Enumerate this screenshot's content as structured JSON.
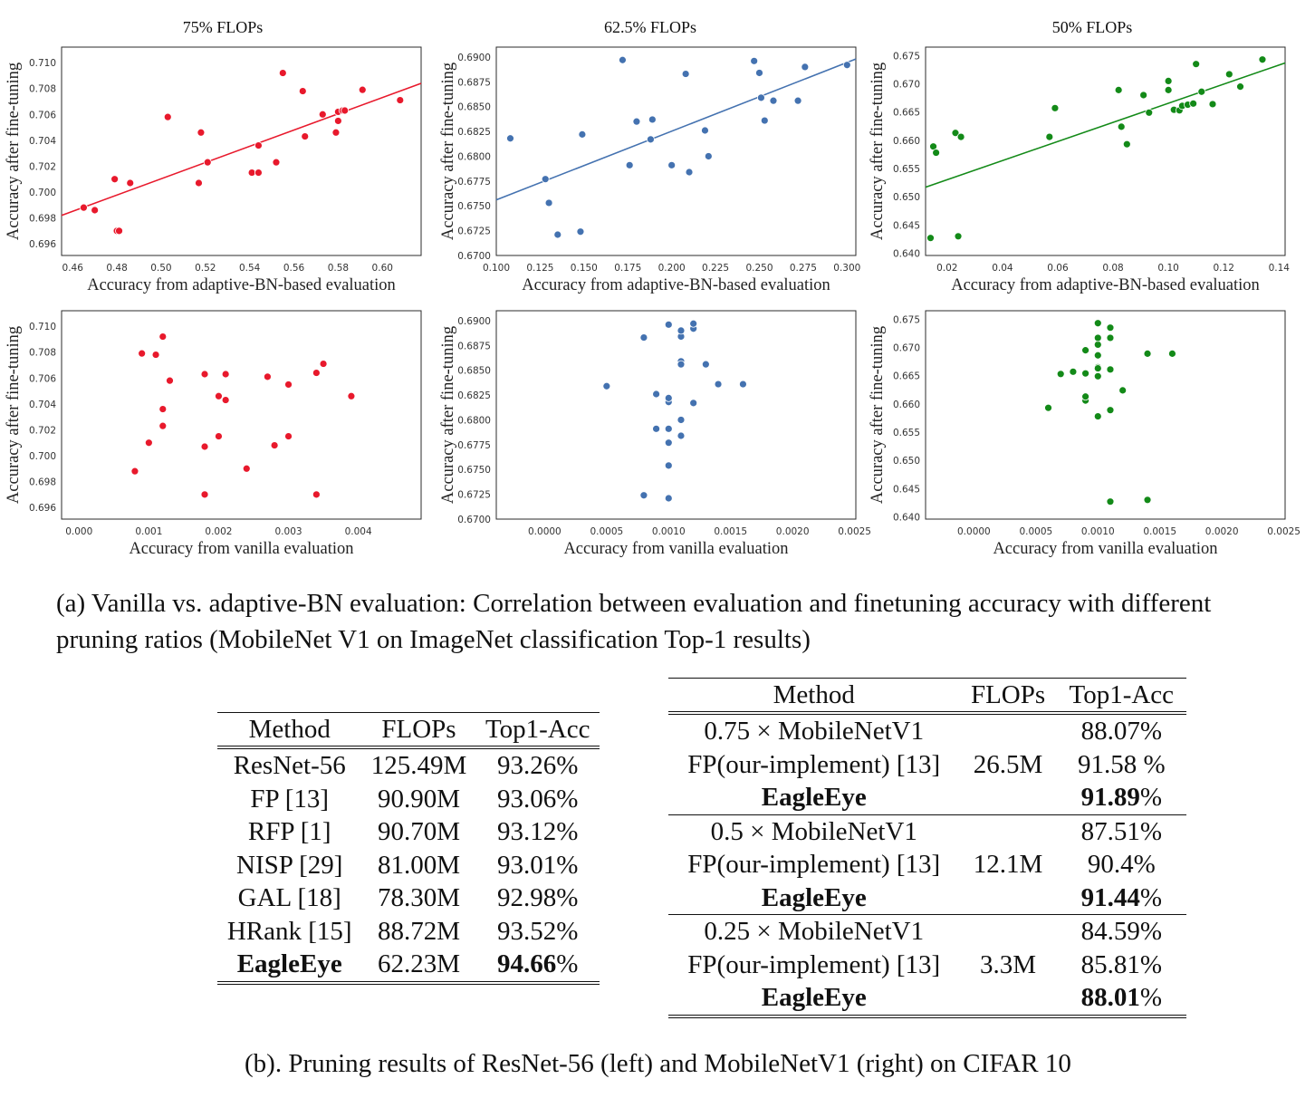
{
  "panel_titles": [
    "75% FLOPs",
    "62.5% FLOPs",
    "50% FLOPs"
  ],
  "chart_data": [
    {
      "type": "scatter",
      "title": "75% FLOPs",
      "color": "#e8192c",
      "xlabel": "Accuracy from adaptive-BN-based evaluation",
      "ylabel": "Accuracy after fine-tuning",
      "xlim": [
        0.455,
        0.6175
      ],
      "ylim": [
        0.6951,
        0.7112
      ],
      "xticks": [
        0.46,
        0.48,
        0.5,
        0.52,
        0.54,
        0.56,
        0.58,
        0.6
      ],
      "xticklabels": [
        "0.46",
        "0.48",
        "0.50",
        "0.52",
        "0.54",
        "0.56",
        "0.58",
        "0.60"
      ],
      "yticks": [
        0.696,
        0.698,
        0.7,
        0.702,
        0.704,
        0.706,
        0.708,
        0.71
      ],
      "yticklabels": [
        "0.696",
        "0.698",
        "0.700",
        "0.702",
        "0.704",
        "0.706",
        "0.708",
        "0.710"
      ],
      "fit": [
        [
          0.455,
          0.6982
        ],
        [
          0.6175,
          0.7084
        ]
      ],
      "x": [
        0.465,
        0.47,
        0.479,
        0.48,
        0.481,
        0.486,
        0.503,
        0.517,
        0.518,
        0.521,
        0.541,
        0.544,
        0.544,
        0.544,
        0.552,
        0.555,
        0.564,
        0.565,
        0.573,
        0.579,
        0.58,
        0.58,
        0.582,
        0.583,
        0.591,
        0.608
      ],
      "y": [
        0.6988,
        0.6986,
        0.701,
        0.697,
        0.697,
        0.7007,
        0.7058,
        0.7007,
        0.7046,
        0.7023,
        0.7015,
        0.7015,
        0.7015,
        0.7036,
        0.7023,
        0.7092,
        0.7078,
        0.7043,
        0.706,
        0.7046,
        0.7062,
        0.7055,
        0.7063,
        0.7063,
        0.7079,
        0.7071
      ]
    },
    {
      "type": "scatter",
      "title": "62.5% FLOPs",
      "color": "#4472b0",
      "xlabel": "Accuracy from adaptive-BN-based evaluation",
      "ylabel": "Accuracy after fine-tuning",
      "xlim": [
        0.1,
        0.305
      ],
      "ylim": [
        0.67,
        0.691
      ],
      "xticks": [
        0.1,
        0.125,
        0.15,
        0.175,
        0.2,
        0.225,
        0.25,
        0.275,
        0.3
      ],
      "xticklabels": [
        "0.100",
        "0.125",
        "0.150",
        "0.175",
        "0.200",
        "0.225",
        "0.250",
        "0.275",
        "0.300"
      ],
      "yticks": [
        0.67,
        0.6725,
        0.675,
        0.6775,
        0.68,
        0.6825,
        0.685,
        0.6875,
        0.69
      ],
      "yticklabels": [
        "0.6700",
        "0.6725",
        "0.6750",
        "0.6775",
        "0.6800",
        "0.6825",
        "0.6850",
        "0.6875",
        "0.6900"
      ],
      "fit": [
        [
          0.1,
          0.6756
        ],
        [
          0.305,
          0.6898
        ]
      ],
      "x": [
        0.108,
        0.128,
        0.13,
        0.135,
        0.148,
        0.149,
        0.172,
        0.176,
        0.18,
        0.188,
        0.189,
        0.2,
        0.2,
        0.208,
        0.21,
        0.219,
        0.221,
        0.247,
        0.25,
        0.251,
        0.253,
        0.258,
        0.272,
        0.276,
        0.3
      ],
      "y": [
        0.6818,
        0.6777,
        0.6753,
        0.6721,
        0.6724,
        0.6822,
        0.6897,
        0.6791,
        0.6835,
        0.6817,
        0.6837,
        0.6791,
        0.6791,
        0.6883,
        0.6784,
        0.6826,
        0.68,
        0.6896,
        0.6884,
        0.6859,
        0.6836,
        0.6856,
        0.6856,
        0.689,
        0.6892
      ]
    },
    {
      "type": "scatter",
      "title": "50% FLOPs",
      "color": "#138a18",
      "xlabel": "Accuracy from adaptive-BN-based evaluation",
      "ylabel": "Accuracy after fine-tuning",
      "xlim": [
        0.0122,
        0.1422
      ],
      "ylim": [
        0.6396,
        0.6765
      ],
      "xticks": [
        0.02,
        0.04,
        0.06,
        0.08,
        0.1,
        0.12,
        0.14
      ],
      "xticklabels": [
        "0.02",
        "0.04",
        "0.06",
        "0.08",
        "0.10",
        "0.12",
        "0.14"
      ],
      "yticks": [
        0.64,
        0.645,
        0.65,
        0.655,
        0.66,
        0.665,
        0.67,
        0.675
      ],
      "yticklabels": [
        "0.640",
        "0.645",
        "0.650",
        "0.655",
        "0.660",
        "0.665",
        "0.670",
        "0.675"
      ],
      "fit": [
        [
          0.0122,
          0.6517
        ],
        [
          0.1422,
          0.6737
        ]
      ],
      "x": [
        0.014,
        0.015,
        0.016,
        0.023,
        0.024,
        0.025,
        0.057,
        0.059,
        0.082,
        0.083,
        0.085,
        0.091,
        0.093,
        0.1,
        0.1,
        0.102,
        0.104,
        0.105,
        0.107,
        0.109,
        0.11,
        0.112,
        0.116,
        0.122,
        0.126,
        0.134
      ],
      "y": [
        0.6427,
        0.6589,
        0.6578,
        0.6613,
        0.643,
        0.6606,
        0.6606,
        0.6657,
        0.6689,
        0.6624,
        0.6593,
        0.668,
        0.6649,
        0.6689,
        0.6705,
        0.6654,
        0.6653,
        0.6661,
        0.6663,
        0.6665,
        0.6735,
        0.6686,
        0.6664,
        0.6717,
        0.6695,
        0.6743
      ]
    },
    {
      "type": "scatter",
      "title": "",
      "color": "#e8192c",
      "xlabel": "Accuracy from vanilla evaluation",
      "ylabel": "Accuracy after fine-tuning",
      "xlim": [
        -0.00025,
        0.0049
      ],
      "ylim": [
        0.6951,
        0.7112
      ],
      "xticks": [
        0,
        0.001,
        0.002,
        0.003,
        0.004
      ],
      "xticklabels": [
        "0.000",
        "0.001",
        "0.002",
        "0.003",
        "0.004"
      ],
      "yticks": [
        0.696,
        0.698,
        0.7,
        0.702,
        0.704,
        0.706,
        0.708,
        0.71
      ],
      "yticklabels": [
        "0.696",
        "0.698",
        "0.700",
        "0.702",
        "0.704",
        "0.706",
        "0.708",
        "0.710"
      ],
      "x": [
        0.0008,
        0.0009,
        0.001,
        0.0011,
        0.0012,
        0.0012,
        0.0012,
        0.0013,
        0.0018,
        0.0018,
        0.0018,
        0.002,
        0.002,
        0.0021,
        0.0021,
        0.0024,
        0.0027,
        0.0028,
        0.003,
        0.003,
        0.0034,
        0.0034,
        0.0035,
        0.0039
      ],
      "y": [
        0.6988,
        0.7079,
        0.701,
        0.7078,
        0.7092,
        0.7036,
        0.7023,
        0.7058,
        0.7063,
        0.7007,
        0.697,
        0.7046,
        0.7015,
        0.7063,
        0.7043,
        0.699,
        0.7061,
        0.7008,
        0.7055,
        0.7015,
        0.7064,
        0.697,
        0.7071,
        0.7046
      ]
    },
    {
      "type": "scatter",
      "title": "",
      "color": "#4472b0",
      "xlabel": "Accuracy from vanilla evaluation",
      "ylabel": "Accuracy after fine-tuning",
      "xlim": [
        -0.00039,
        0.00251
      ],
      "ylim": [
        0.67,
        0.691
      ],
      "xticks": [
        0,
        0.0005,
        0.001,
        0.0015,
        0.002,
        0.0025
      ],
      "xticklabels": [
        "0.0000",
        "0.0005",
        "0.0010",
        "0.0015",
        "0.0020",
        "0.0025"
      ],
      "yticks": [
        0.67,
        0.6725,
        0.675,
        0.6775,
        0.68,
        0.6825,
        0.685,
        0.6875,
        0.69
      ],
      "yticklabels": [
        "0.6700",
        "0.6725",
        "0.6750",
        "0.6775",
        "0.6800",
        "0.6825",
        "0.6850",
        "0.6875",
        "0.6900"
      ],
      "x": [
        0.0005,
        0.0008,
        0.0008,
        0.0009,
        0.0009,
        0.001,
        0.001,
        0.001,
        0.001,
        0.001,
        0.001,
        0.001,
        0.0011,
        0.0011,
        0.0011,
        0.0011,
        0.0011,
        0.0011,
        0.0012,
        0.0012,
        0.0012,
        0.0013,
        0.0014,
        0.0016
      ],
      "y": [
        0.6834,
        0.6724,
        0.6883,
        0.6826,
        0.6791,
        0.6721,
        0.6754,
        0.6777,
        0.6791,
        0.6818,
        0.6822,
        0.6896,
        0.6784,
        0.68,
        0.6859,
        0.6856,
        0.6884,
        0.689,
        0.6892,
        0.6897,
        0.6817,
        0.6856,
        0.6836,
        0.6836
      ]
    },
    {
      "type": "scatter",
      "title": "",
      "color": "#138a18",
      "xlabel": "Accuracy from vanilla evaluation",
      "ylabel": "Accuracy after fine-tuning",
      "xlim": [
        -0.00039,
        0.00251
      ],
      "ylim": [
        0.6396,
        0.6765
      ],
      "xticks": [
        0,
        0.0005,
        0.001,
        0.0015,
        0.002,
        0.0025
      ],
      "xticklabels": [
        "0.0000",
        "0.0005",
        "0.0010",
        "0.0015",
        "0.0020",
        "0.0025"
      ],
      "yticks": [
        0.64,
        0.645,
        0.65,
        0.655,
        0.66,
        0.665,
        0.67,
        0.675
      ],
      "yticklabels": [
        "0.640",
        "0.645",
        "0.650",
        "0.655",
        "0.660",
        "0.665",
        "0.670",
        "0.675"
      ],
      "x": [
        0.0006,
        0.0007,
        0.0008,
        0.0009,
        0.0009,
        0.0009,
        0.0009,
        0.001,
        0.001,
        0.001,
        0.001,
        0.001,
        0.001,
        0.001,
        0.001,
        0.0011,
        0.0011,
        0.0011,
        0.0011,
        0.0011,
        0.0012,
        0.0014,
        0.0014,
        0.0016
      ],
      "y": [
        0.6593,
        0.6653,
        0.6657,
        0.6654,
        0.6606,
        0.6613,
        0.6695,
        0.6578,
        0.6649,
        0.6665,
        0.6663,
        0.6686,
        0.6705,
        0.6717,
        0.6743,
        0.6735,
        0.6717,
        0.6589,
        0.6427,
        0.6661,
        0.6624,
        0.6689,
        0.643,
        0.6689
      ]
    }
  ],
  "caption_a": "(a) Vanilla vs. adaptive-BN evaluation: Correlation between evaluation and finetuning accuracy with different pruning ratios (MobileNet V1  on ImageNet classification Top-1 results)",
  "table_left": {
    "headers": [
      "Method",
      "FLOPs",
      "Top1-Acc"
    ],
    "rows": [
      {
        "method": "ResNet-56",
        "flops": "125.49M",
        "acc": "93.26%"
      },
      {
        "method": "FP [13]",
        "flops": "90.90M",
        "acc": "93.06%"
      },
      {
        "method": "RFP [1]",
        "flops": "90.70M",
        "acc": "93.12%"
      },
      {
        "method": "NISP [29]",
        "flops": "81.00M",
        "acc": "93.01%"
      },
      {
        "method": "GAL [18]",
        "flops": "78.30M",
        "acc": "92.98%"
      },
      {
        "method": "HRank [15]",
        "flops": "88.72M",
        "acc": "93.52%"
      },
      {
        "method": "EagleEye",
        "flops": "62.23M",
        "acc": "94.66",
        "acc_suffix": "%"
      }
    ]
  },
  "table_right": {
    "headers": [
      "Method",
      "FLOPs",
      "Top1-Acc"
    ],
    "rows": [
      {
        "method": "0.75 × MobileNetV1",
        "flops": "",
        "acc": "88.07%"
      },
      {
        "method": "FP(our-implement) [13]",
        "flops": "26.5M",
        "acc": "91.58 %"
      },
      {
        "method": "EagleEye",
        "flops": "",
        "acc": "91.89",
        "acc_suffix": "%"
      },
      {
        "method": "0.5 × MobileNetV1",
        "flops": "",
        "acc": "87.51%"
      },
      {
        "method": "FP(our-implement) [13]",
        "flops": "12.1M",
        "acc": "90.4%"
      },
      {
        "method": "EagleEye",
        "flops": "",
        "acc": "91.44",
        "acc_suffix": "%"
      },
      {
        "method": "0.25 × MobileNetV1",
        "flops": "",
        "acc": "84.59%"
      },
      {
        "method": "FP(our-implement) [13]",
        "flops": "3.3M",
        "acc": "85.81%"
      },
      {
        "method": "EagleEye",
        "flops": "",
        "acc": "88.01",
        "acc_suffix": "%"
      }
    ]
  },
  "caption_b": "(b). Pruning results of ResNet-56 (left) and MobileNetV1 (right) on CIFAR 10"
}
